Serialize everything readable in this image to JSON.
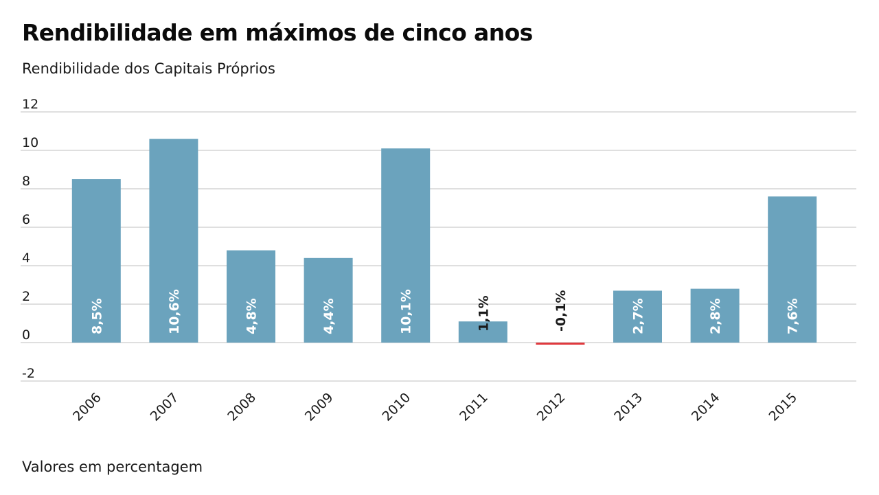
{
  "chart_data": {
    "type": "bar",
    "title": "Rendibilidade em máximos de cinco anos",
    "subtitle": "Rendibilidade dos Capitais Próprios",
    "note": "Valores em percentagem",
    "categories": [
      "2006",
      "2007",
      "2008",
      "2009",
      "2010",
      "2011",
      "2012",
      "2013",
      "2014",
      "2015"
    ],
    "values": [
      8.5,
      10.6,
      4.8,
      4.4,
      10.1,
      1.1,
      -0.1,
      2.7,
      2.8,
      7.6
    ],
    "data_labels": [
      "8,5%",
      "10,6%",
      "4,8%",
      "4,4%",
      "10,1%",
      "1,1%",
      "-0,1%",
      "2,7%",
      "2,8%",
      "7,6%"
    ],
    "yticks": [
      12,
      10,
      8,
      6,
      4,
      2,
      0,
      -2
    ],
    "ylim": [
      -2,
      12
    ],
    "grid": true,
    "colors": {
      "positive": "#6ba3bd",
      "negative": "#e0393e",
      "grid": "#cccccc"
    }
  }
}
